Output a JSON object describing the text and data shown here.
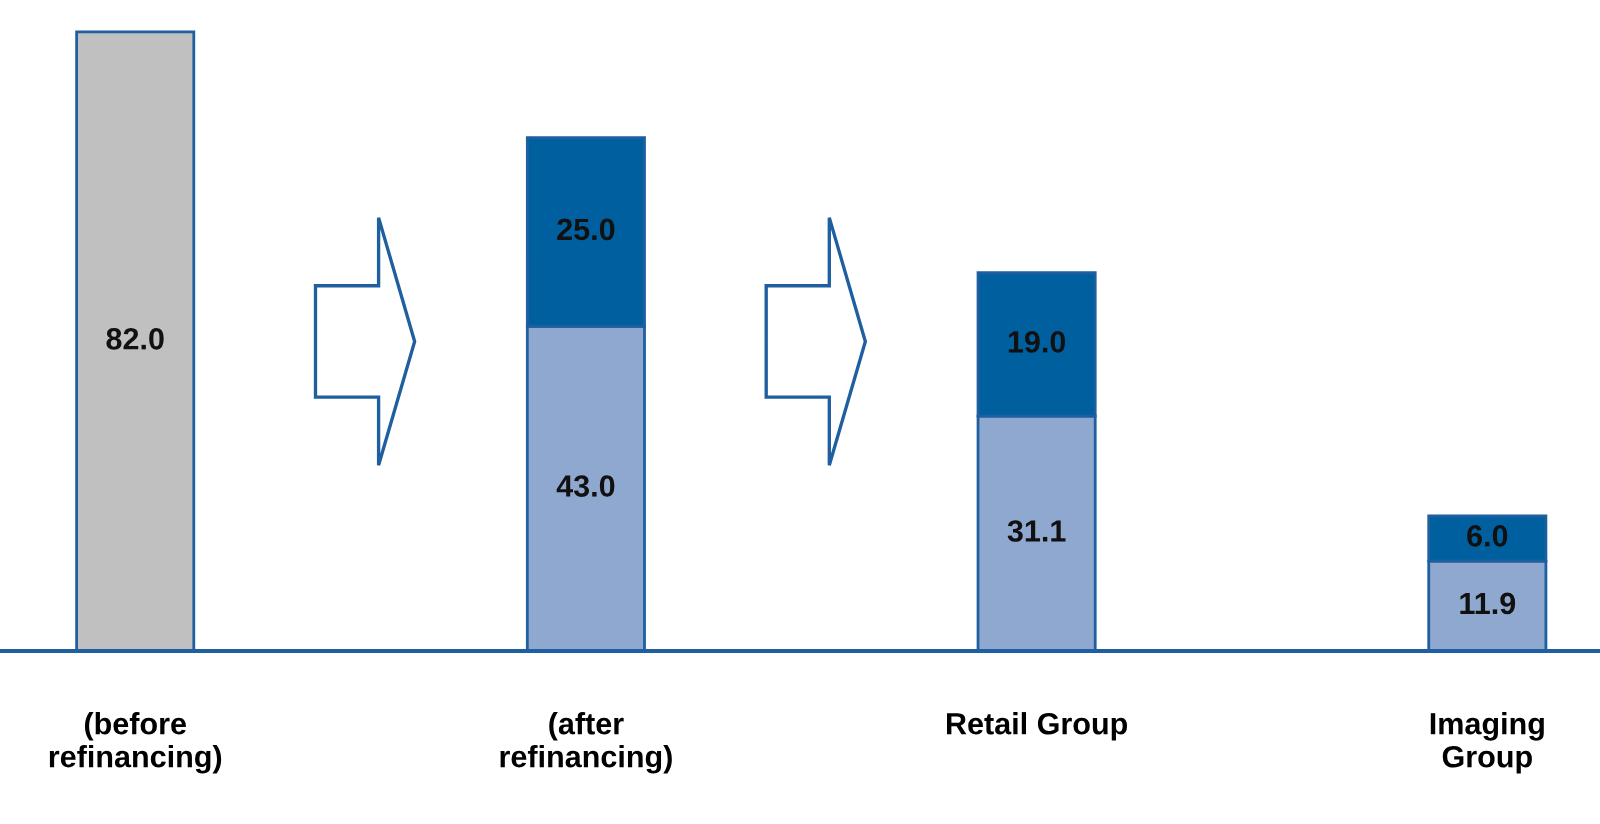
{
  "chart_data": {
    "type": "bar",
    "stacked": true,
    "grid": false,
    "categories": [
      "(before refinancing)",
      "(after refinancing)",
      "Retail Group",
      "Imaging Group"
    ],
    "series": [
      {
        "colors": [
          "#c0c0c0",
          "#8fa8cf",
          "#8fa8cf",
          "#8fa8cf"
        ],
        "values": [
          82.0,
          43.0,
          31.1,
          11.9
        ],
        "value_labels": [
          "82.0",
          "43.0",
          "31.1",
          "11.9"
        ]
      },
      {
        "color": "#00609f",
        "values": [
          null,
          25.0,
          19.0,
          6.0
        ],
        "value_labels": [
          null,
          "25.0",
          "19.0",
          "6.0"
        ]
      }
    ]
  }
}
